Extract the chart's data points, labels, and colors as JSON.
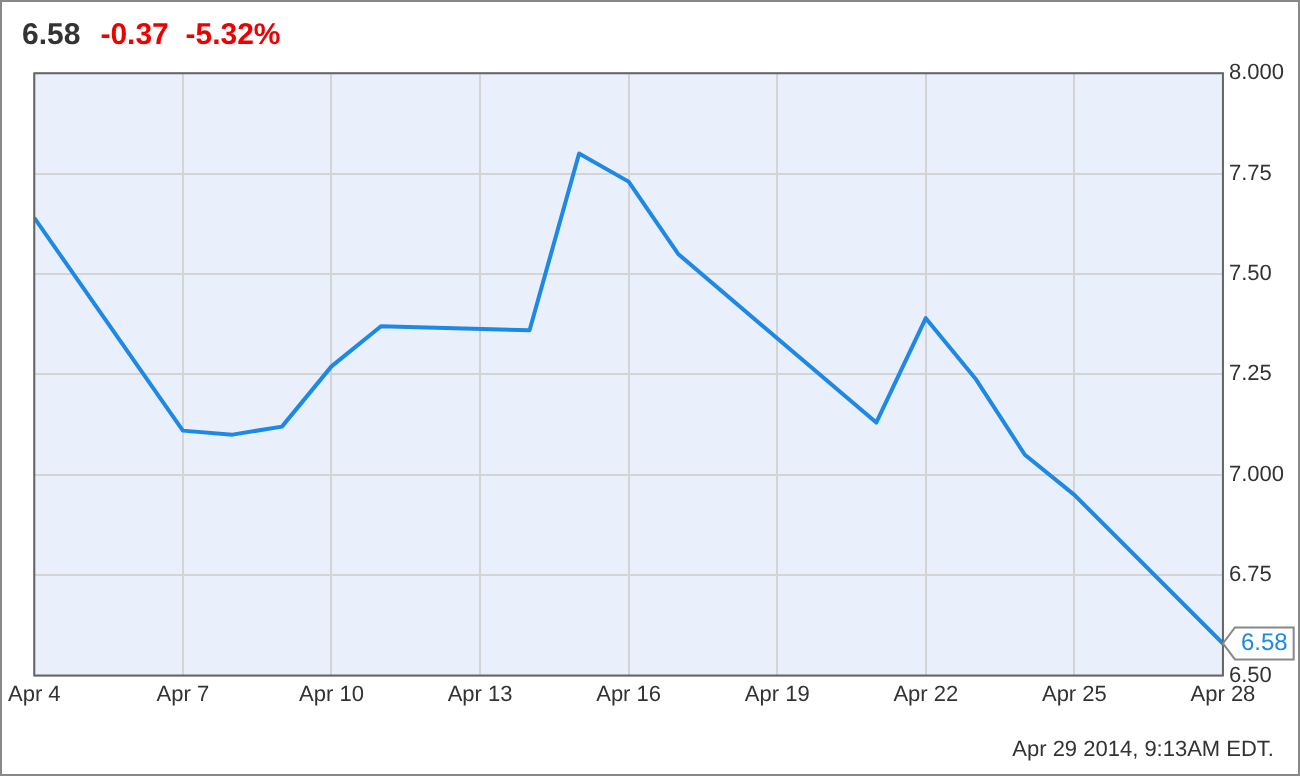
{
  "chart_data": {
    "type": "line",
    "title": "6.58",
    "subtitle": "-0.37  -5.32%",
    "x": [
      "2014-04-04",
      "2014-04-07",
      "2014-04-08",
      "2014-04-09",
      "2014-04-10",
      "2014-04-11",
      "2014-04-14",
      "2014-04-15",
      "2014-04-16",
      "2014-04-17",
      "2014-04-21",
      "2014-04-22",
      "2014-04-23",
      "2014-04-24",
      "2014-04-25",
      "2014-04-28"
    ],
    "series": [
      {
        "color": "#1e88e5",
        "values": [
          7.64,
          7.11,
          7.1,
          7.12,
          7.27,
          7.37,
          7.36,
          7.8,
          7.73,
          7.55,
          7.13,
          7.39,
          7.24,
          7.05,
          6.95,
          6.58
        ]
      }
    ],
    "xlim": [
      "2014-04-04",
      "2014-04-28"
    ],
    "xticks": [
      {
        "value": "2014-04-04",
        "label": "Apr 4"
      },
      {
        "value": "2014-04-07",
        "label": "Apr 7"
      },
      {
        "value": "2014-04-10",
        "label": "Apr 10"
      },
      {
        "value": "2014-04-13",
        "label": "Apr 13"
      },
      {
        "value": "2014-04-16",
        "label": "Apr 16"
      },
      {
        "value": "2014-04-19",
        "label": "Apr 19"
      },
      {
        "value": "2014-04-22",
        "label": "Apr 22"
      },
      {
        "value": "2014-04-25",
        "label": "Apr 25"
      },
      {
        "value": "2014-04-28",
        "label": "Apr 28"
      }
    ],
    "ylim": [
      6.5,
      8.0
    ],
    "yticks": [
      {
        "value": 6.5,
        "label": "6.50"
      },
      {
        "value": 6.75,
        "label": "6.75"
      },
      {
        "value": 7.0,
        "label": "7.000"
      },
      {
        "value": 7.25,
        "label": "7.25"
      },
      {
        "value": 7.5,
        "label": "7.50"
      },
      {
        "value": 7.75,
        "label": "7.75"
      },
      {
        "value": 8.0,
        "label": "8.000"
      }
    ],
    "grid": true,
    "legend": false,
    "marker": "none",
    "line_style": "solid",
    "annotations": [
      {
        "text": "6.58",
        "x": "2014-04-28",
        "y": 6.58
      },
      "Apr 29 2014, 9:13AM EDT."
    ]
  }
}
